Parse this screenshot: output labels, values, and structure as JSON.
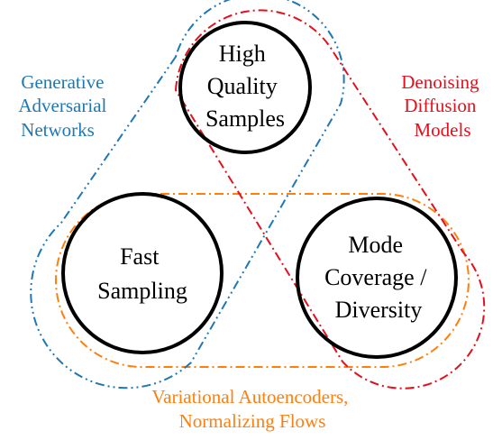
{
  "nodes": {
    "quality": {
      "lines": [
        "High",
        "Quality",
        "Samples"
      ]
    },
    "sampling": {
      "lines": [
        "Fast",
        "Sampling"
      ]
    },
    "diversity": {
      "lines": [
        "Mode",
        "Coverage /",
        "Diversity"
      ]
    }
  },
  "groups": {
    "gan": {
      "lines": [
        "Generative",
        "Adversarial",
        "Networks"
      ],
      "color": "#1f77b4"
    },
    "diffusion": {
      "lines": [
        "Denoising",
        "Diffusion",
        "Models"
      ],
      "color": "#e3101d"
    },
    "vae": {
      "lines": [
        "Variational Autoencoders,",
        "Normalizing Flows"
      ],
      "color": "#ff7f0e"
    }
  }
}
